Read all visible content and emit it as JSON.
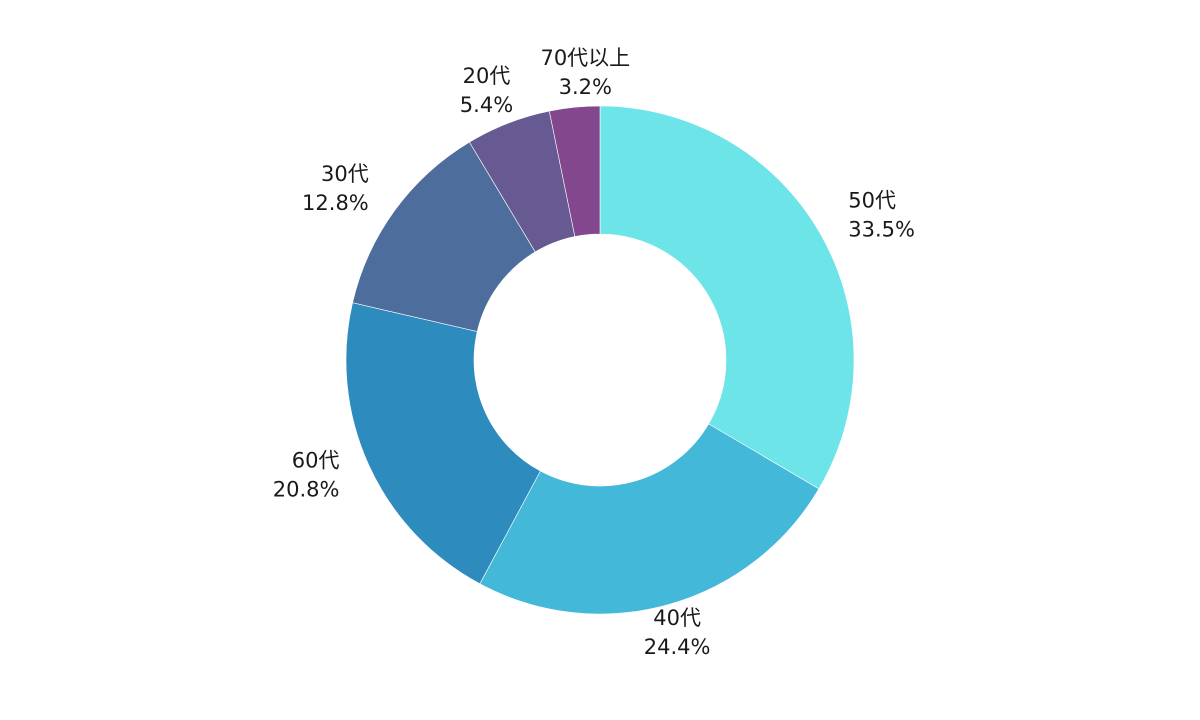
{
  "chart_data": {
    "type": "pie",
    "variant": "donut",
    "start_angle_deg": 0,
    "direction": "clockwise",
    "legend": "none",
    "slices": [
      {
        "label": "50代",
        "value": 33.5,
        "percent_label": "33.5%",
        "color": "#6de4e8"
      },
      {
        "label": "40代",
        "value": 24.4,
        "percent_label": "24.4%",
        "color": "#44b8d8"
      },
      {
        "label": "60代",
        "value": 20.8,
        "percent_label": "20.8%",
        "color": "#2e8bbd"
      },
      {
        "label": "30代",
        "value": 12.8,
        "percent_label": "12.8%",
        "color": "#4d6e9c"
      },
      {
        "label": "20代",
        "value": 5.4,
        "percent_label": "5.4%",
        "color": "#675a93"
      },
      {
        "label": "70代以上",
        "value": 3.2,
        "percent_label": "3.2%",
        "color": "#82478d"
      }
    ]
  }
}
